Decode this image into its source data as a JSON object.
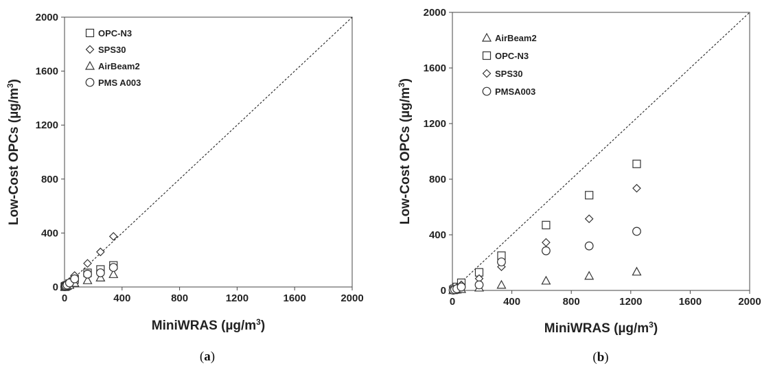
{
  "chart_data": [
    {
      "type": "scatter",
      "caption_open": "(",
      "caption_letter": "a",
      "caption_close": ")",
      "xlabel_main": "MiniWRAS (µg/m",
      "xlabel_sup": "3",
      "xlabel_end": ")",
      "ylabel_main": "Low-Cost OPCs (µg/m",
      "ylabel_sup": "3",
      "ylabel_end": ")",
      "xlim": [
        0,
        2000
      ],
      "ylim": [
        0,
        2000
      ],
      "xticks": [
        0,
        400,
        800,
        1200,
        1600,
        2000
      ],
      "yticks": [
        0,
        400,
        800,
        1200,
        1600,
        2000
      ],
      "reference_line": "1:1",
      "legend_placement": "top-left",
      "series": [
        {
          "name": "OPC-N3",
          "marker": "square",
          "x": [
            2,
            5,
            10,
            18,
            35,
            70,
            160,
            250,
            340
          ],
          "y": [
            2,
            5,
            8,
            12,
            25,
            55,
            105,
            130,
            160
          ]
        },
        {
          "name": "SPS30",
          "marker": "diamond",
          "x": [
            2,
            5,
            10,
            18,
            35,
            70,
            160,
            250,
            340
          ],
          "y": [
            3,
            6,
            12,
            22,
            40,
            85,
            175,
            260,
            375
          ]
        },
        {
          "name": "AirBeam2",
          "marker": "triangle",
          "x": [
            2,
            5,
            10,
            18,
            35,
            70,
            160,
            250,
            340
          ],
          "y": [
            1,
            3,
            5,
            8,
            15,
            30,
            50,
            70,
            95
          ]
        },
        {
          "name": "PMS A003",
          "marker": "circle",
          "x": [
            2,
            5,
            10,
            18,
            35,
            70,
            160,
            250,
            340
          ],
          "y": [
            2,
            5,
            10,
            15,
            30,
            60,
            95,
            105,
            145
          ]
        }
      ]
    },
    {
      "type": "scatter",
      "caption_open": "(",
      "caption_letter": "b",
      "caption_close": ")",
      "xlabel_main": "MiniWRAS (µg/m",
      "xlabel_sup": "3",
      "xlabel_end": ")",
      "ylabel_main": "Low-Cost OPCs (µg/m",
      "ylabel_sup": "3",
      "ylabel_end": ")",
      "xlim": [
        0,
        2000
      ],
      "ylim": [
        0,
        2000
      ],
      "xticks": [
        0,
        400,
        800,
        1200,
        1600,
        2000
      ],
      "yticks": [
        0,
        400,
        800,
        1200,
        1600,
        2000
      ],
      "reference_line": "1:1",
      "legend_placement": "top-left",
      "series": [
        {
          "name": "AirBeam2",
          "marker": "triangle",
          "x": [
            5,
            15,
            30,
            60,
            180,
            330,
            630,
            920,
            1240
          ],
          "y": [
            2,
            4,
            6,
            10,
            20,
            40,
            70,
            105,
            135
          ]
        },
        {
          "name": "OPC-N3",
          "marker": "square",
          "x": [
            5,
            15,
            30,
            60,
            180,
            330,
            630,
            920,
            1240
          ],
          "y": [
            5,
            12,
            25,
            55,
            130,
            250,
            470,
            685,
            910
          ]
        },
        {
          "name": "SPS30",
          "marker": "diamond",
          "x": [
            5,
            15,
            30,
            60,
            180,
            330,
            630,
            920,
            1240
          ],
          "y": [
            4,
            10,
            20,
            40,
            85,
            170,
            345,
            515,
            735
          ]
        },
        {
          "name": "PMSA003",
          "marker": "circle",
          "x": [
            5,
            15,
            30,
            60,
            180,
            330,
            630,
            920,
            1240
          ],
          "y": [
            2,
            6,
            12,
            25,
            40,
            205,
            285,
            320,
            425
          ]
        }
      ]
    }
  ]
}
